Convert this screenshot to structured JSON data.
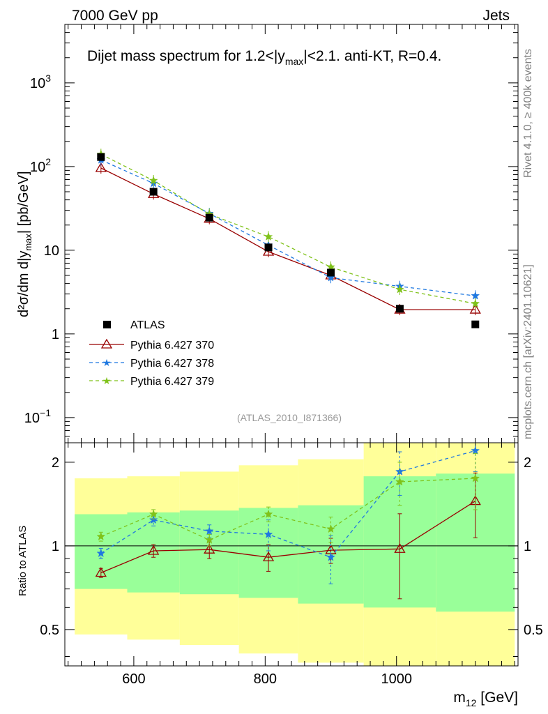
{
  "header": {
    "left": "7000 GeV pp",
    "right": "Jets"
  },
  "side": {
    "rivet": "Rivet 4.1.0, ≥ 400k events",
    "mcplots": "mcplots.cern.ch [arXiv:2401.10621]"
  },
  "chart_data": {
    "type": "line",
    "title_main": "Dijet mass spectrum for 1.2<|y",
    "title_sub": "max",
    "title_tail": "|<2.1.  anti-KT, R=0.4.",
    "analysis_label": "(ATLAS_2010_I871366)",
    "ylabel_main": "d²σ/dm d|y",
    "ylabel_sub": "max",
    "ylabel_tail": "| [pb/GeV]",
    "ratio_ylabel": "Ratio to ATLAS",
    "xlabel_main": "m",
    "xlabel_sub": "12",
    "xlabel_tail": " [GeV]",
    "xlim": [
      495,
      1185
    ],
    "ylim_main": [
      0.05,
      5000
    ],
    "ylim_ratio": [
      0.37,
      2.35
    ],
    "x_ticks": [
      600,
      800,
      1000
    ],
    "x_tick_labels": [
      "600",
      "800",
      "1000"
    ],
    "main_y_ticks": [
      {
        "value": 0.1,
        "base": "10",
        "exp": "−1"
      },
      {
        "value": 1,
        "base": "1",
        "exp": ""
      },
      {
        "value": 10,
        "base": "10",
        "exp": ""
      },
      {
        "value": 100,
        "base": "10",
        "exp": "2"
      },
      {
        "value": 1000,
        "base": "10",
        "exp": "3"
      }
    ],
    "ratio_y_ticks": [
      {
        "value": 0.5,
        "label": "0.5"
      },
      {
        "value": 1,
        "label": "1"
      },
      {
        "value": 2,
        "label": "2"
      }
    ],
    "bins": [
      {
        "lo": 510,
        "hi": 590
      },
      {
        "lo": 590,
        "hi": 670
      },
      {
        "lo": 670,
        "hi": 760
      },
      {
        "lo": 760,
        "hi": 850
      },
      {
        "lo": 850,
        "hi": 950
      },
      {
        "lo": 950,
        "hi": 1060
      },
      {
        "lo": 1060,
        "hi": 1180
      }
    ],
    "x": [
      550,
      630,
      715,
      805,
      900,
      1005,
      1120
    ],
    "atlas": {
      "name": "ATLAS",
      "values": [
        130,
        50,
        24.5,
        10.8,
        5.4,
        2.0,
        1.3
      ],
      "band_1sigma": [
        [
          0.7,
          1.3
        ],
        [
          0.68,
          1.32
        ],
        [
          0.67,
          1.34
        ],
        [
          0.65,
          1.37
        ],
        [
          0.62,
          1.4
        ],
        [
          0.6,
          1.78
        ],
        [
          0.58,
          1.82
        ]
      ],
      "band_2sigma": [
        [
          0.48,
          1.75
        ],
        [
          0.46,
          1.78
        ],
        [
          0.44,
          1.85
        ],
        [
          0.41,
          1.95
        ],
        [
          0.38,
          2.05
        ],
        [
          0.37,
          2.4
        ],
        [
          0.37,
          2.4
        ]
      ]
    },
    "series": [
      {
        "name": "Pythia 6.427 370",
        "color": "#990000",
        "dash": "",
        "marker": "triangle",
        "values": [
          96,
          47,
          23.8,
          9.6,
          5.0,
          1.95,
          1.95
        ],
        "ratio": [
          0.8,
          0.96,
          0.97,
          0.91,
          0.965,
          0.975,
          1.45
        ],
        "ratio_err": [
          0.03,
          0.05,
          0.07,
          0.1,
          0.1,
          0.33,
          0.38
        ]
      },
      {
        "name": "Pythia 6.427 378",
        "color": "#1f78e0",
        "dash": "5,4",
        "marker": "star",
        "values": [
          120,
          63,
          27.5,
          11.5,
          4.7,
          3.7,
          2.85
        ],
        "ratio": [
          0.94,
          1.24,
          1.13,
          1.1,
          0.91,
          1.85,
          2.2
        ],
        "ratio_err": [
          0.04,
          0.06,
          0.06,
          0.14,
          0.18,
          0.33,
          0.35
        ]
      },
      {
        "name": "Pythia 6.427 379",
        "color": "#7fc21a",
        "dash": "5,4",
        "marker": "star",
        "values": [
          140,
          68,
          27.0,
          14.5,
          6.3,
          3.4,
          2.3
        ],
        "ratio": [
          1.08,
          1.3,
          1.05,
          1.3,
          1.15,
          1.7,
          1.75
        ],
        "ratio_err": [
          0.04,
          0.05,
          0.05,
          0.08,
          0.12,
          0.3,
          0.4
        ]
      }
    ],
    "legend_position": "lower-left",
    "colors": {
      "band_outer": "#ffff99",
      "band_inner": "#99ff99",
      "atlas": "#000000"
    }
  }
}
